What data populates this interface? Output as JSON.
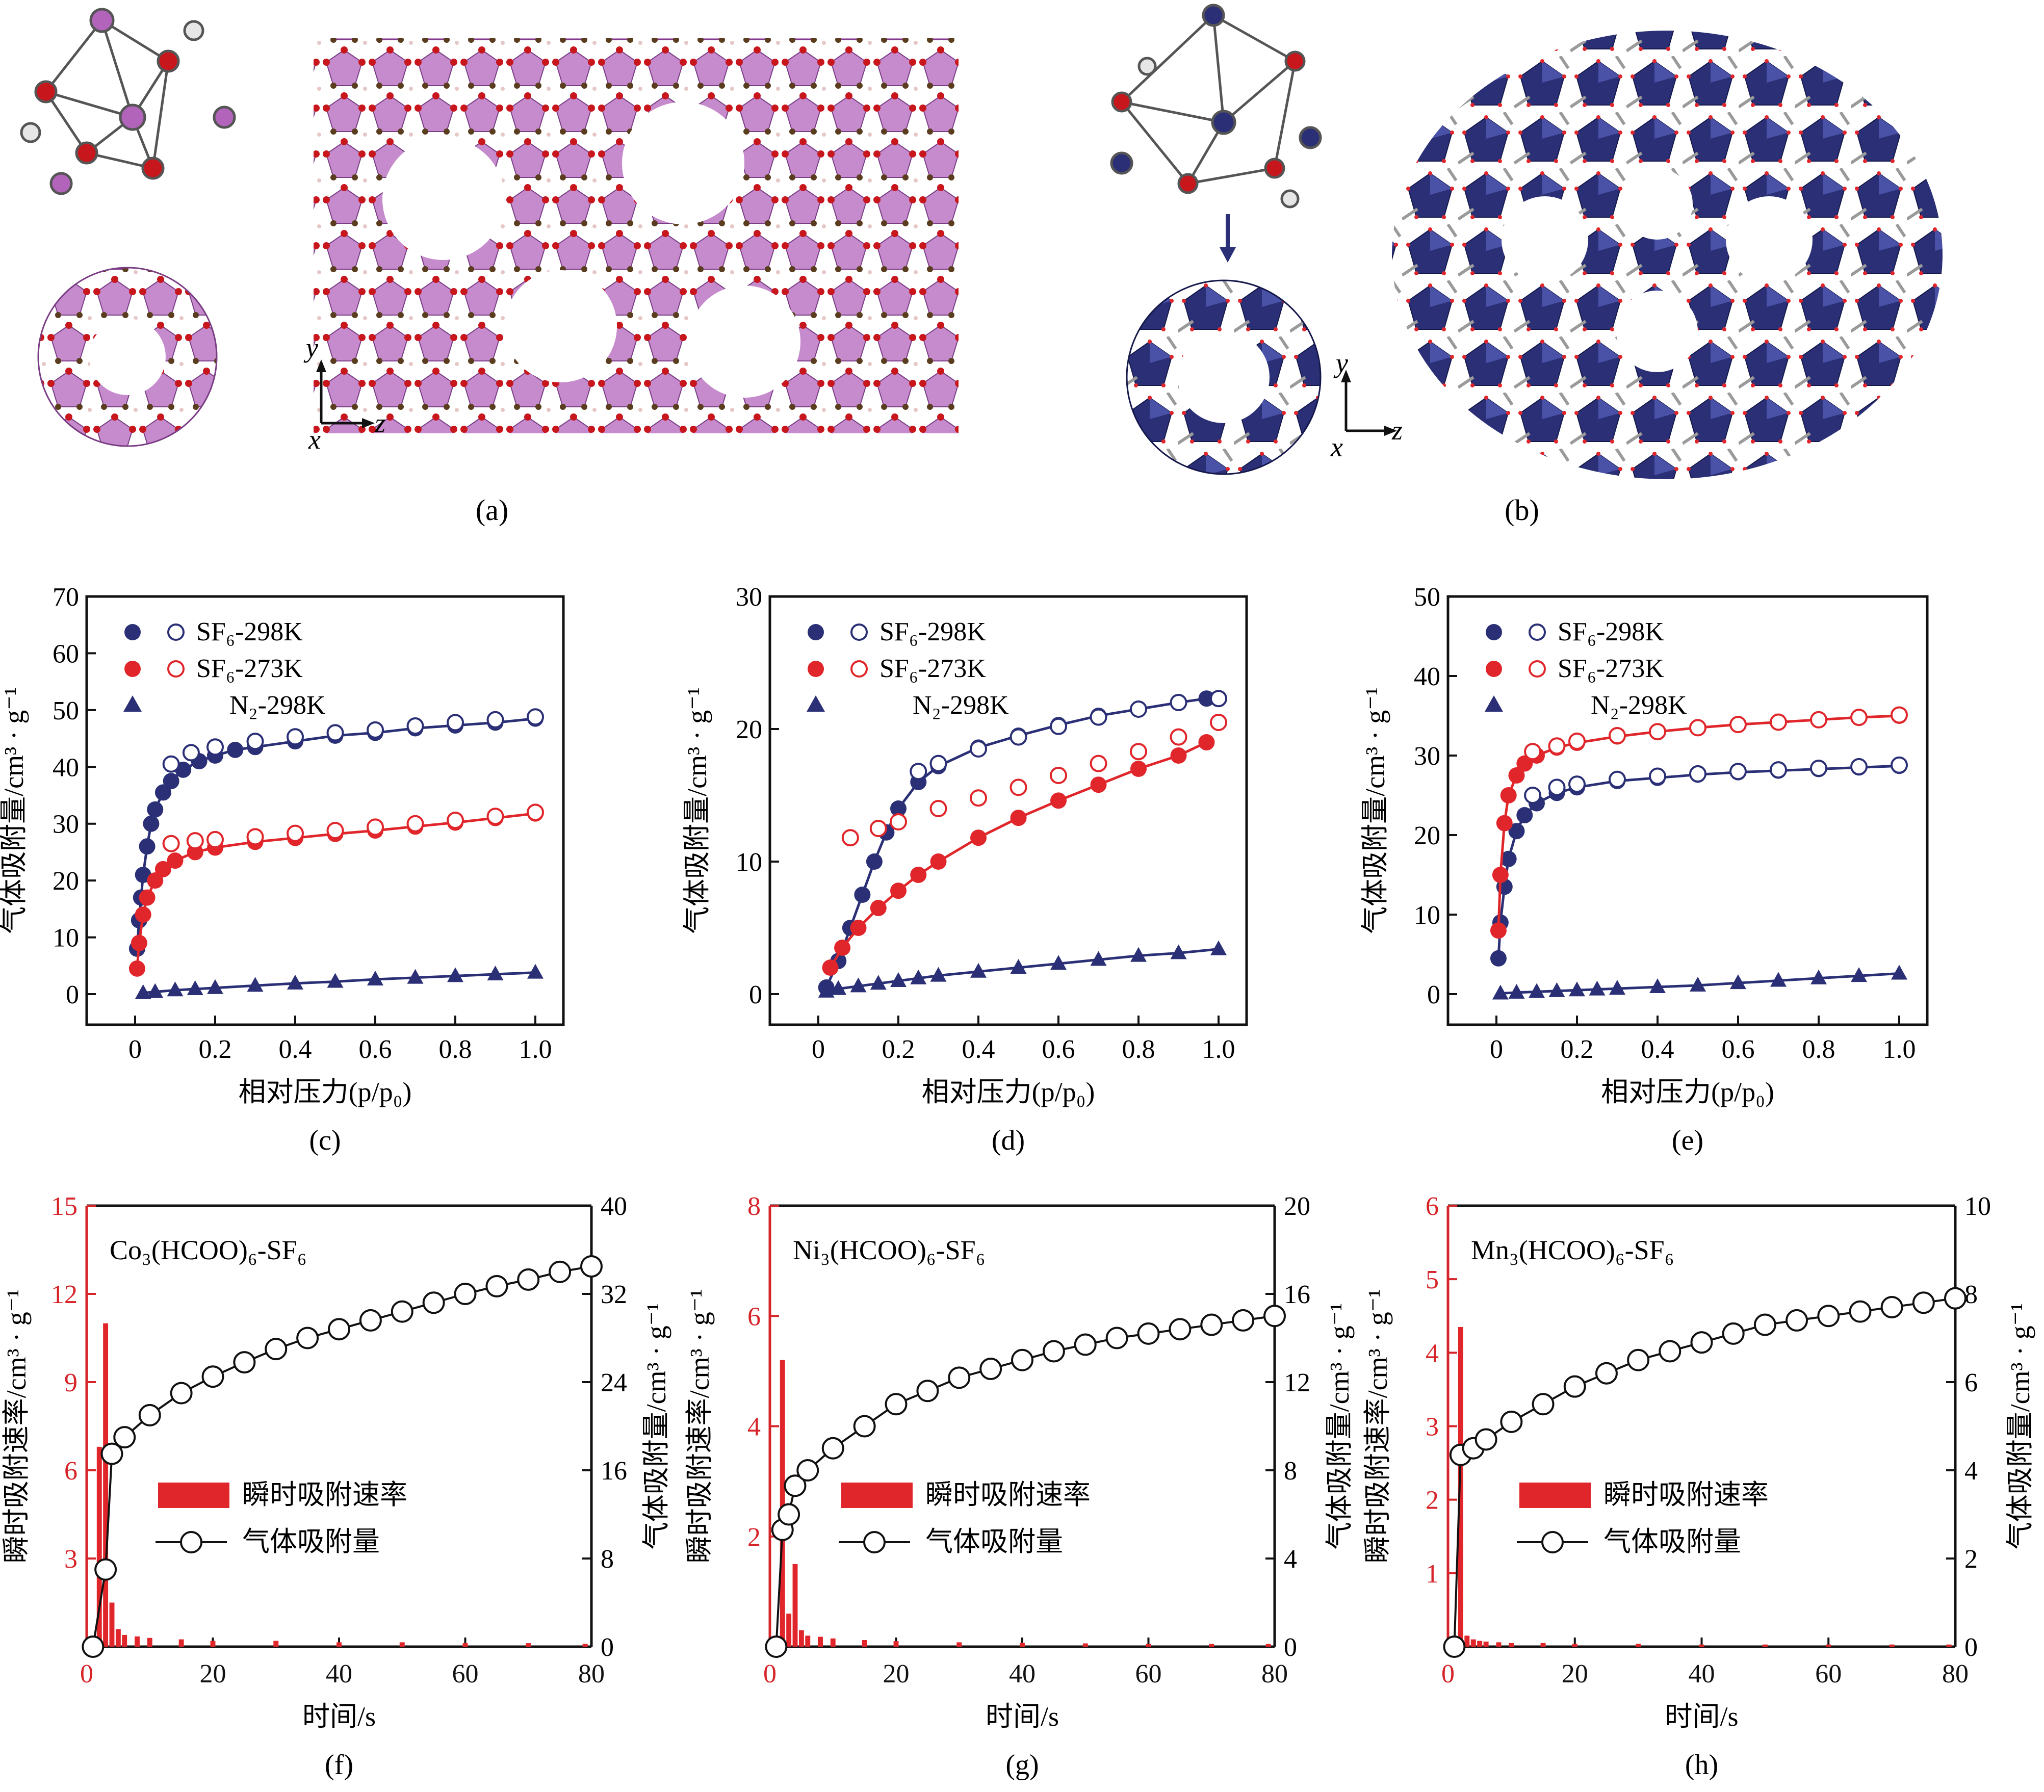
{
  "structures": [
    {
      "panel_label": "(a)",
      "axis_labels": {
        "y": "y",
        "z": "z",
        "x": "x"
      }
    },
    {
      "panel_label": "(b)",
      "axis_labels": {
        "y": "y",
        "z": "z",
        "x": "x"
      }
    }
  ],
  "colors": {
    "navy": "#2b3076",
    "red": "#e0262b",
    "purple": "#b264bb",
    "oxygen": "#c8161d",
    "carbon": "#5a3d1e",
    "axis_red": "#d62428"
  },
  "chart_data": [
    {
      "panel_label": "(c)",
      "type": "scatter",
      "xlabel": "相对压力(p/p₀)",
      "ylabel": "气体吸附量/cm³ · g⁻¹",
      "xlim": [
        0,
        1.0
      ],
      "ylim": [
        0,
        70
      ],
      "xticks": [
        "0",
        "0.2",
        "0.4",
        "0.6",
        "0.8",
        "1.0"
      ],
      "yticks": [
        "0",
        "10",
        "20",
        "30",
        "40",
        "50",
        "60",
        "70"
      ],
      "legend": {
        "position": "top-left",
        "entries": [
          "SF₆-298K",
          "SF₆-273K",
          "N₂-298K"
        ]
      },
      "series": [
        {
          "name": "SF₆-298K",
          "color": "#2b3076",
          "marker": "circle-filled",
          "adsorption": true,
          "x": [
            0.005,
            0.01,
            0.015,
            0.02,
            0.03,
            0.04,
            0.05,
            0.07,
            0.09,
            0.12,
            0.16,
            0.2,
            0.25,
            0.3,
            0.4,
            0.5,
            0.6,
            0.7,
            0.8,
            0.9,
            1.0
          ],
          "y": [
            8,
            13,
            17,
            21,
            26,
            30,
            32.5,
            35.5,
            37.5,
            39.5,
            41,
            42,
            43,
            43.5,
            44.5,
            45.5,
            46,
            46.8,
            47.3,
            47.8,
            48.5
          ]
        },
        {
          "name": "SF₆-298K",
          "color": "#2b3076",
          "marker": "circle-open",
          "adsorption": false,
          "x": [
            0.09,
            0.14,
            0.2,
            0.3,
            0.4,
            0.5,
            0.6,
            0.7,
            0.8,
            0.9,
            1.0
          ],
          "y": [
            40.5,
            42.5,
            43.5,
            44.5,
            45.3,
            46,
            46.5,
            47.2,
            47.8,
            48.3,
            48.8
          ]
        },
        {
          "name": "SF₆-273K",
          "color": "#e0262b",
          "marker": "circle-filled",
          "adsorption": true,
          "x": [
            0.005,
            0.01,
            0.02,
            0.03,
            0.05,
            0.07,
            0.1,
            0.15,
            0.2,
            0.3,
            0.4,
            0.5,
            0.6,
            0.7,
            0.8,
            0.9,
            1.0
          ],
          "y": [
            4.5,
            9,
            14,
            17,
            20,
            22,
            23.5,
            25,
            25.8,
            26.8,
            27.5,
            28.2,
            28.8,
            29.5,
            30.2,
            31,
            31.8
          ]
        },
        {
          "name": "SF₆-273K",
          "color": "#e0262b",
          "marker": "circle-open",
          "adsorption": false,
          "x": [
            0.09,
            0.15,
            0.2,
            0.3,
            0.4,
            0.5,
            0.6,
            0.7,
            0.8,
            0.9,
            1.0
          ],
          "y": [
            26.5,
            27,
            27.2,
            27.7,
            28.3,
            28.8,
            29.4,
            30,
            30.6,
            31.3,
            32
          ]
        },
        {
          "name": "N₂-298K",
          "color": "#2b3076",
          "marker": "triangle-filled",
          "adsorption": true,
          "x": [
            0.02,
            0.05,
            0.1,
            0.15,
            0.2,
            0.3,
            0.4,
            0.5,
            0.6,
            0.7,
            0.8,
            0.9,
            1.0
          ],
          "y": [
            0.2,
            0.4,
            0.7,
            0.9,
            1.1,
            1.5,
            1.9,
            2.2,
            2.6,
            2.9,
            3.2,
            3.5,
            3.8
          ]
        }
      ]
    },
    {
      "panel_label": "(d)",
      "type": "scatter",
      "xlabel": "相对压力(p/p₀)",
      "ylabel": "气体吸附量/cm³ · g⁻¹",
      "xlim": [
        0,
        1.0
      ],
      "ylim": [
        0,
        30
      ],
      "xticks": [
        "0",
        "0.2",
        "0.4",
        "0.6",
        "0.8",
        "1.0"
      ],
      "yticks": [
        "0",
        "10",
        "20",
        "30"
      ],
      "legend": {
        "position": "top-left",
        "entries": [
          "SF₆-298K",
          "SF₆-273K",
          "N₂-298K"
        ]
      },
      "series": [
        {
          "name": "SF₆-298K",
          "color": "#2b3076",
          "marker": "circle-filled",
          "adsorption": true,
          "x": [
            0.02,
            0.05,
            0.08,
            0.11,
            0.14,
            0.17,
            0.2,
            0.25,
            0.3,
            0.4,
            0.5,
            0.6,
            0.7,
            0.8,
            0.9,
            0.97
          ],
          "y": [
            0.5,
            2.5,
            5,
            7.5,
            10,
            12.2,
            14,
            16,
            17.2,
            18.6,
            19.5,
            20.3,
            21,
            21.5,
            22,
            22.3
          ]
        },
        {
          "name": "SF₆-298K",
          "color": "#2b3076",
          "marker": "circle-open",
          "adsorption": false,
          "x": [
            0.25,
            0.3,
            0.4,
            0.5,
            0.6,
            0.7,
            0.8,
            0.9,
            1.0
          ],
          "y": [
            16.8,
            17.4,
            18.5,
            19.4,
            20.2,
            20.9,
            21.5,
            22,
            22.3
          ]
        },
        {
          "name": "SF₆-273K",
          "color": "#e0262b",
          "marker": "circle-filled",
          "adsorption": true,
          "x": [
            0.03,
            0.06,
            0.1,
            0.15,
            0.2,
            0.25,
            0.3,
            0.4,
            0.5,
            0.6,
            0.7,
            0.8,
            0.9,
            0.97
          ],
          "y": [
            2,
            3.5,
            5,
            6.5,
            7.8,
            9,
            10,
            11.8,
            13.3,
            14.6,
            15.8,
            17,
            18,
            19
          ]
        },
        {
          "name": "SF₆-273K",
          "color": "#e0262b",
          "marker": "circle-open",
          "adsorption": false,
          "x": [
            0.08,
            0.15,
            0.2,
            0.3,
            0.4,
            0.5,
            0.6,
            0.7,
            0.8,
            0.9,
            1.0
          ],
          "y": [
            11.8,
            12.5,
            13,
            14,
            14.8,
            15.6,
            16.5,
            17.4,
            18.3,
            19.4,
            20.5
          ]
        },
        {
          "name": "N₂-298K",
          "color": "#2b3076",
          "marker": "triangle-filled",
          "adsorption": true,
          "x": [
            0.02,
            0.05,
            0.1,
            0.15,
            0.2,
            0.25,
            0.3,
            0.4,
            0.5,
            0.6,
            0.7,
            0.8,
            0.9,
            1.0
          ],
          "y": [
            0.2,
            0.4,
            0.6,
            0.8,
            1,
            1.2,
            1.4,
            1.7,
            2,
            2.3,
            2.6,
            2.9,
            3.1,
            3.4
          ]
        }
      ]
    },
    {
      "panel_label": "(e)",
      "type": "scatter",
      "xlabel": "相对压力(p/p₀)",
      "ylabel": "气体吸附量/cm³ · g⁻¹",
      "xlim": [
        0,
        1.0
      ],
      "ylim": [
        0,
        50
      ],
      "xticks": [
        "0",
        "0.2",
        "0.4",
        "0.6",
        "0.8",
        "1.0"
      ],
      "yticks": [
        "0",
        "10",
        "20",
        "30",
        "40",
        "50"
      ],
      "legend": {
        "position": "top-left",
        "entries": [
          "SF₆-298K",
          "SF₆-273K",
          "N₂-298K"
        ]
      },
      "series": [
        {
          "name": "SF₆-298K",
          "color": "#2b3076",
          "marker": "circle-filled",
          "adsorption": true,
          "x": [
            0.005,
            0.01,
            0.02,
            0.03,
            0.05,
            0.07,
            0.1,
            0.15,
            0.2,
            0.3,
            0.4,
            0.5,
            0.6,
            0.7,
            0.8,
            0.9,
            1.0
          ],
          "y": [
            4.5,
            9,
            13.5,
            17,
            20.5,
            22.5,
            24,
            25.3,
            26,
            26.8,
            27.2,
            27.6,
            27.9,
            28.1,
            28.3,
            28.5,
            28.7
          ]
        },
        {
          "name": "SF₆-298K",
          "color": "#2b3076",
          "marker": "circle-open",
          "adsorption": false,
          "x": [
            0.09,
            0.15,
            0.2,
            0.3,
            0.4,
            0.5,
            0.6,
            0.7,
            0.8,
            0.9,
            1.0
          ],
          "y": [
            25,
            26,
            26.4,
            27,
            27.4,
            27.7,
            28,
            28.2,
            28.4,
            28.6,
            28.8
          ]
        },
        {
          "name": "SF₆-273K",
          "color": "#e0262b",
          "marker": "circle-filled",
          "adsorption": true,
          "x": [
            0.005,
            0.01,
            0.02,
            0.03,
            0.05,
            0.07,
            0.1,
            0.15,
            0.2,
            0.3,
            0.4,
            0.5,
            0.6,
            0.7,
            0.8,
            0.9,
            1.0
          ],
          "y": [
            8,
            15,
            21.5,
            25,
            27.5,
            29,
            30,
            31,
            31.6,
            32.4,
            33,
            33.5,
            33.9,
            34.2,
            34.5,
            34.8,
            35
          ]
        },
        {
          "name": "SF₆-273K",
          "color": "#e0262b",
          "marker": "circle-open",
          "adsorption": false,
          "x": [
            0.09,
            0.15,
            0.2,
            0.3,
            0.4,
            0.5,
            0.6,
            0.7,
            0.8,
            0.9,
            1.0
          ],
          "y": [
            30.5,
            31.2,
            31.8,
            32.5,
            33,
            33.5,
            33.9,
            34.2,
            34.5,
            34.8,
            35.1
          ]
        },
        {
          "name": "N₂-298K",
          "color": "#2b3076",
          "marker": "triangle-filled",
          "adsorption": true,
          "x": [
            0.01,
            0.05,
            0.1,
            0.15,
            0.2,
            0.25,
            0.3,
            0.4,
            0.5,
            0.6,
            0.7,
            0.8,
            0.9,
            1.0
          ],
          "y": [
            0.1,
            0.2,
            0.3,
            0.4,
            0.5,
            0.6,
            0.7,
            0.9,
            1.1,
            1.4,
            1.7,
            2,
            2.3,
            2.6
          ]
        }
      ]
    },
    {
      "panel_label": "(f)",
      "type": "bar+line",
      "inset_title": "Co₃(HCOO)₆-SF₆",
      "xlabel": "时间/s",
      "ylabel_left": "瞬时吸附速率/cm³ · g⁻¹",
      "ylabel_right": "气体吸附量/cm³ · g⁻¹",
      "xlim": [
        0,
        80
      ],
      "ylim_left": [
        0,
        15
      ],
      "ylim_right": [
        0,
        40
      ],
      "xticks": [
        "0",
        "20",
        "40",
        "60",
        "80"
      ],
      "yticks_left": [
        "0",
        "3",
        "6",
        "9",
        "12",
        "15"
      ],
      "yticks_right": [
        "0",
        "8",
        "16",
        "24",
        "32",
        "40"
      ],
      "legend": {
        "position": "center",
        "entries": [
          "瞬时吸附速率",
          "气体吸附量"
        ]
      },
      "rate_series": {
        "name": "瞬时吸附速率",
        "color": "#e0262b",
        "t": [
          1,
          2,
          3,
          4,
          5,
          6,
          8,
          10,
          15,
          20,
          30,
          40,
          50,
          60,
          70,
          79
        ],
        "values": [
          0.3,
          6.8,
          11.0,
          1.5,
          0.6,
          0.4,
          0.35,
          0.3,
          0.25,
          0.2,
          0.2,
          0.15,
          0.15,
          0.12,
          0.12,
          0.1
        ]
      },
      "uptake_series": {
        "name": "气体吸附量",
        "color": "#111111",
        "t": [
          1,
          3,
          4,
          6,
          10,
          15,
          20,
          25,
          30,
          35,
          40,
          45,
          50,
          55,
          60,
          65,
          70,
          75,
          80
        ],
        "values": [
          0,
          7,
          17.5,
          19,
          21,
          23,
          24.5,
          25.8,
          27,
          28,
          28.8,
          29.6,
          30.4,
          31.2,
          32,
          32.7,
          33.3,
          34,
          34.5
        ]
      }
    },
    {
      "panel_label": "(g)",
      "type": "bar+line",
      "inset_title": "Ni₃(HCOO)₆-SF₆",
      "xlabel": "时间/s",
      "ylabel_left": "瞬时吸附速率/cm³ · g⁻¹",
      "ylabel_right": "气体吸附量/cm³ · g⁻¹",
      "xlim": [
        0,
        80
      ],
      "ylim_left": [
        0,
        8
      ],
      "ylim_right": [
        0,
        20
      ],
      "xticks": [
        "0",
        "20",
        "40",
        "60",
        "80"
      ],
      "yticks_left": [
        "0",
        "2",
        "4",
        "6",
        "8"
      ],
      "yticks_right": [
        "0",
        "4",
        "8",
        "12",
        "16",
        "20"
      ],
      "legend": {
        "position": "center",
        "entries": [
          "瞬时吸附速率",
          "气体吸附量"
        ]
      },
      "rate_series": {
        "name": "瞬时吸附速率",
        "color": "#e0262b",
        "t": [
          1,
          2,
          3,
          4,
          5,
          6,
          8,
          10,
          15,
          20,
          30,
          40,
          50,
          60,
          70,
          79
        ],
        "values": [
          0.2,
          5.2,
          0.6,
          1.5,
          0.3,
          0.2,
          0.18,
          0.15,
          0.12,
          0.1,
          0.08,
          0.07,
          0.06,
          0.05,
          0.05,
          0.05
        ]
      },
      "uptake_series": {
        "name": "气体吸附量",
        "color": "#111111",
        "t": [
          1,
          2,
          3,
          4,
          6,
          10,
          15,
          20,
          25,
          30,
          35,
          40,
          45,
          50,
          55,
          60,
          65,
          70,
          75,
          80
        ],
        "values": [
          0,
          5.3,
          6.0,
          7.3,
          8,
          9,
          10,
          11,
          11.6,
          12.2,
          12.6,
          13,
          13.4,
          13.7,
          14,
          14.2,
          14.4,
          14.6,
          14.8,
          15
        ]
      }
    },
    {
      "panel_label": "(h)",
      "type": "bar+line",
      "inset_title": "Mn₃(HCOO)₆-SF₆",
      "xlabel": "时间/s",
      "ylabel_left": "瞬时吸附速率/cm³ · g⁻¹",
      "ylabel_right": "气体吸附量/cm³ · g⁻¹",
      "xlim": [
        0,
        80
      ],
      "ylim_left": [
        0,
        6
      ],
      "ylim_right": [
        0,
        10
      ],
      "xticks": [
        "0",
        "20",
        "40",
        "60",
        "80"
      ],
      "yticks_left": [
        "1",
        "2",
        "3",
        "4",
        "5",
        "6"
      ],
      "yticks_right": [
        "0",
        "2",
        "4",
        "6",
        "8",
        "10"
      ],
      "legend": {
        "position": "center",
        "entries": [
          "瞬时吸附速率",
          "气体吸附量"
        ]
      },
      "rate_series": {
        "name": "瞬时吸附速率",
        "color": "#e0262b",
        "t": [
          1,
          2,
          3,
          4,
          5,
          6,
          8,
          10,
          15,
          20,
          30,
          40,
          50,
          60,
          70,
          79
        ],
        "values": [
          0.1,
          4.35,
          0.15,
          0.1,
          0.08,
          0.07,
          0.06,
          0.05,
          0.05,
          0.04,
          0.04,
          0.03,
          0.03,
          0.03,
          0.03,
          0.03
        ]
      },
      "uptake_series": {
        "name": "气体吸附量",
        "color": "#111111",
        "t": [
          1,
          2,
          4,
          6,
          10,
          15,
          20,
          25,
          30,
          35,
          40,
          45,
          50,
          55,
          60,
          65,
          70,
          75,
          80
        ],
        "values": [
          0,
          4.35,
          4.5,
          4.7,
          5.1,
          5.5,
          5.9,
          6.2,
          6.5,
          6.7,
          6.9,
          7.1,
          7.3,
          7.4,
          7.5,
          7.6,
          7.7,
          7.8,
          7.9
        ]
      }
    }
  ]
}
